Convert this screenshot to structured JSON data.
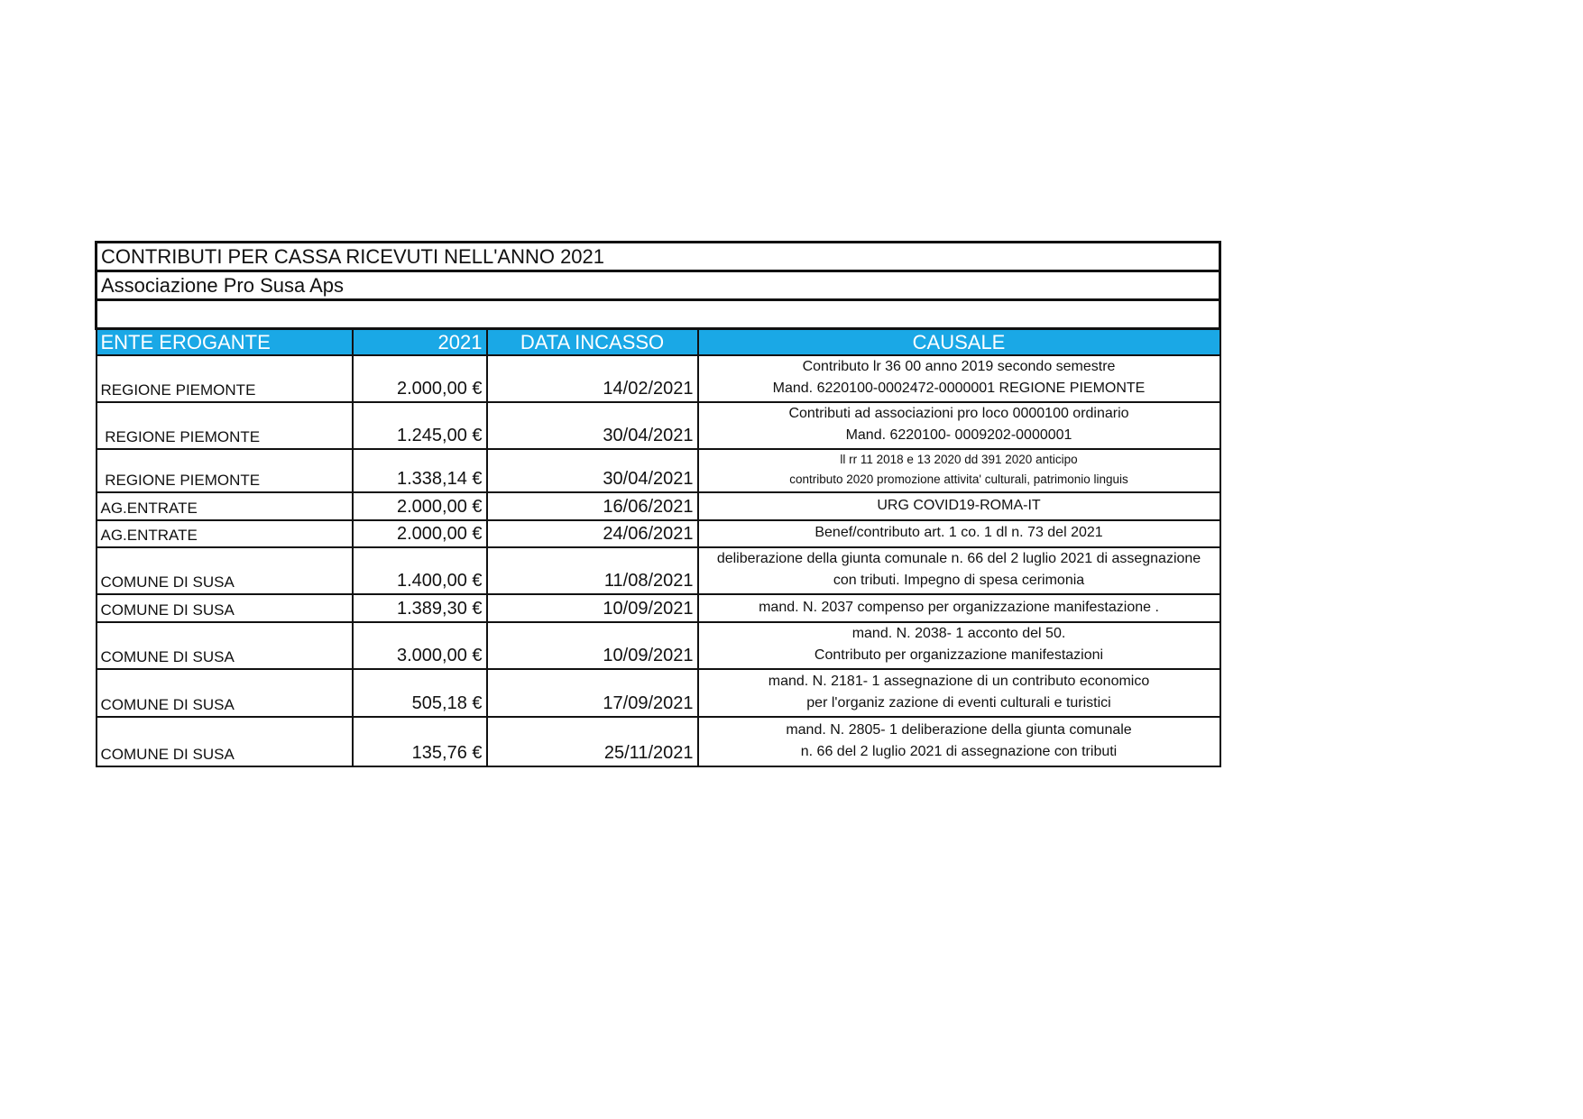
{
  "title": "CONTRIBUTI PER CASSA RICEVUTI NELL'ANNO 2021",
  "subtitle": "Associazione Pro Susa Aps",
  "columns": [
    "ENTE EROGANTE",
    "2021",
    "DATA INCASSO",
    "CAUSALE"
  ],
  "header_color": "#1aa8e6",
  "rows": [
    {
      "ente": "REGIONE PIEMONTE",
      "importo": "2.000,00 €",
      "data": "14/02/2021",
      "causale": [
        "Contributo lr 36 00 anno 2019 secondo semestre",
        "Mand. 6220100-0002472-0000001  REGIONE PIEMONTE"
      ]
    },
    {
      "ente": " REGIONE PIEMONTE",
      "importo": "1.245,00 €",
      "data": "30/04/2021",
      "causale": [
        "Contributi ad associazioni pro loco 0000100 ordinario",
        "Mand. 6220100- 0009202-0000001"
      ]
    },
    {
      "ente": " REGIONE PIEMONTE",
      "importo": "1.338,14 €",
      "data": "30/04/2021",
      "causale": [
        "ll rr 11 2018 e 13 2020 dd 391 2020 anticipo",
        "contributo 2020 promozione attivita' culturali, patrimonio linguis"
      ]
    },
    {
      "ente": "AG.ENTRATE",
      "importo": "2.000,00 €",
      "data": "16/06/2021",
      "causale": [
        "URG COVID19-ROMA-IT"
      ]
    },
    {
      "ente": "AG.ENTRATE",
      "importo": "2.000,00 €",
      "data": "24/06/2021",
      "causale": [
        "Benef/contributo art. 1 co. 1 dl n. 73 del 2021"
      ]
    },
    {
      "ente": "COMUNE DI SUSA",
      "importo": "1.400,00 €",
      "data": "11/08/2021",
      "causale": [
        "deliberazione della giunta comunale n. 66 del 2 luglio 2021 di assegnazione",
        "con tributi. Impegno di spesa cerimonia"
      ]
    },
    {
      "ente": "COMUNE DI SUSA",
      "importo": "1.389,30 €",
      "data": "10/09/2021",
      "causale": [
        "mand. N. 2037  compenso per organizzazione manifestazione ."
      ]
    },
    {
      "ente": "COMUNE DI SUSA",
      "importo": "3.000,00 €",
      "data": "10/09/2021",
      "causale": [
        "mand. N. 2038- 1 acconto del 50.",
        "Contributo per organizzazione manifestazioni"
      ]
    },
    {
      "ente": "COMUNE DI SUSA",
      "importo": "505,18 €",
      "data": "17/09/2021",
      "causale": [
        "mand. N. 2181- 1 assegnazione di un contributo economico",
        "per l'organiz zazione di eventi culturali e turistici"
      ]
    },
    {
      "ente": "COMUNE DI SUSA",
      "importo": "135,76 €",
      "data": "25/11/2021",
      "causale": [
        "mand. N. 2805- 1 deliberazione della giunta comunale",
        "n. 66 del 2 luglio 2021 di assegnazione con tributi"
      ]
    }
  ]
}
